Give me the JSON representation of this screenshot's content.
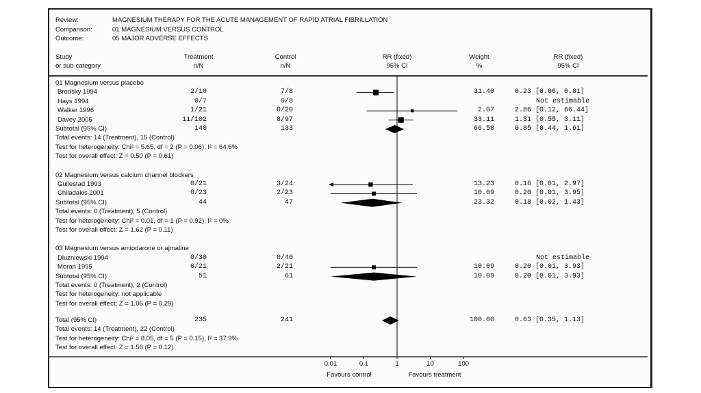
{
  "header": {
    "review_label": "Review:",
    "review": "MAGNESIUM THERAPY FOR THE ACUTE MANAGEMENT OF RAPID ATRIAL FIBRILLATION",
    "comparison_label": "Comparison:",
    "comparison": "01 MAGNESIUM VERSUS CONTROL",
    "outcome_label": "Outcome:",
    "outcome": "05 MAJOR ADVERSE EFFECTS"
  },
  "columns": {
    "study": [
      "Study",
      "or sub-category"
    ],
    "treatment": [
      "Treatment",
      "n/N"
    ],
    "control": [
      "Control",
      "n/N"
    ],
    "plot": [
      "RR (fixed)",
      "95% CI"
    ],
    "weight": [
      "Weight",
      "%"
    ],
    "rr": [
      "RR (fixed)",
      "95% CI"
    ]
  },
  "chart_data": {
    "type": "forest",
    "scale": "log",
    "xlim": [
      0.01,
      100
    ],
    "ticks": [
      "0.01",
      "0.1",
      "1",
      "10",
      "100"
    ],
    "tick_values": [
      0.01,
      0.1,
      1,
      10,
      100
    ],
    "xlabel_left": "Favours control",
    "xlabel_right": "Favours treatment",
    "groups": [
      {
        "title": "01 Magnesium versus placebo",
        "studies": [
          {
            "name": "Brodsky 1994",
            "treatment": "2/10",
            "control": "7/8",
            "weight": "31.40",
            "rr_text": "0.23 [0.06, 0.81]",
            "rr": 0.23,
            "lo": 0.06,
            "hi": 0.81
          },
          {
            "name": "Hays 1994",
            "treatment": "0/7",
            "control": "0/8",
            "weight": "",
            "rr_text": "Not estimable"
          },
          {
            "name": "Walker 1996",
            "treatment": "1/21",
            "control": "0/20",
            "weight": "2.07",
            "rr_text": "2.86 [0.12, 66.44]",
            "rr": 2.86,
            "lo": 0.12,
            "hi": 66.44
          },
          {
            "name": "Davey 2005",
            "treatment": "11/102",
            "control": "8/97",
            "weight": "33.11",
            "rr_text": "1.31 [0.55, 3.11]",
            "rr": 1.31,
            "lo": 0.55,
            "hi": 3.11
          }
        ],
        "subtotal": {
          "label": "Subtotal (95% CI)",
          "treatment": "140",
          "control": "133",
          "weight": "66.58",
          "rr_text": "0.85 [0.44, 1.61]",
          "rr": 0.85,
          "lo": 0.44,
          "hi": 1.61
        },
        "notes": [
          "Total events: 14 (Treatment), 15 (Control)",
          "Test for heterogeneity: Chi² = 5.65, df = 2 (P = 0.06), I² = 64.6%",
          "Test for overall effect: Z = 0.50 (P = 0.61)"
        ]
      },
      {
        "title": "02 Magnesium versus calcium channel blockers",
        "studies": [
          {
            "name": "Gullestad 1993",
            "treatment": "0/21",
            "control": "3/24",
            "weight": "13.23",
            "rr_text": "0.16 [0.01, 2.97]",
            "rr": 0.16,
            "lo": 0.01,
            "hi": 2.97,
            "arrow_left": true
          },
          {
            "name": "Chiladakis 2001",
            "treatment": "0/23",
            "control": "2/23",
            "weight": "10.09",
            "rr_text": "0.20 [0.01, 3.95]",
            "rr": 0.2,
            "lo": 0.01,
            "hi": 3.95
          }
        ],
        "subtotal": {
          "label": "Subtotal (95% CI)",
          "treatment": "44",
          "control": "47",
          "weight": "23.32",
          "rr_text": "0.18 [0.02, 1.43]",
          "rr": 0.18,
          "lo": 0.02,
          "hi": 1.43
        },
        "notes": [
          "Total events: 0 (Treatment), 5 (Control)",
          "Test for heterogeneity: Chi² = 0.01, df = 1 (P = 0.92), I² = 0%",
          "Test for overall effect: Z = 1.62 (P = 0.11)"
        ]
      },
      {
        "title": "03 Magnesium versus amiodarone or ajmaline",
        "studies": [
          {
            "name": "Dluzniewski 1994",
            "treatment": "0/30",
            "control": "0/40",
            "weight": "",
            "rr_text": "Not estimable"
          },
          {
            "name": "Moran 1995",
            "treatment": "0/21",
            "control": "2/21",
            "weight": "10.09",
            "rr_text": "0.20 [0.01, 3.93]",
            "rr": 0.2,
            "lo": 0.01,
            "hi": 3.93
          }
        ],
        "subtotal": {
          "label": "Subtotal (95% CI)",
          "treatment": "51",
          "control": "61",
          "weight": "10.09",
          "rr_text": "0.20 [0.01, 3.93]",
          "rr": 0.2,
          "lo": 0.01,
          "hi": 3.93
        },
        "notes": [
          "Total events: 0 (Treatment), 2 (Control)",
          "Test for heterogeneity: not applicable",
          "Test for overall effect: Z = 1.06 (P = 0.29)"
        ]
      }
    ],
    "total": {
      "label": "Total (95% CI)",
      "treatment": "235",
      "control": "241",
      "weight": "100.00",
      "rr_text": "0.63 [0.35, 1.13]",
      "rr": 0.63,
      "lo": 0.35,
      "hi": 1.13,
      "notes": [
        "Total events: 14 (Treatment), 22 (Control)",
        "Test for heterogeneity: Chi² = 8.05, df = 5 (P = 0.15), I² = 37.9%",
        "Test for overall effect: Z = 1.56 (P = 0.12)"
      ]
    }
  }
}
